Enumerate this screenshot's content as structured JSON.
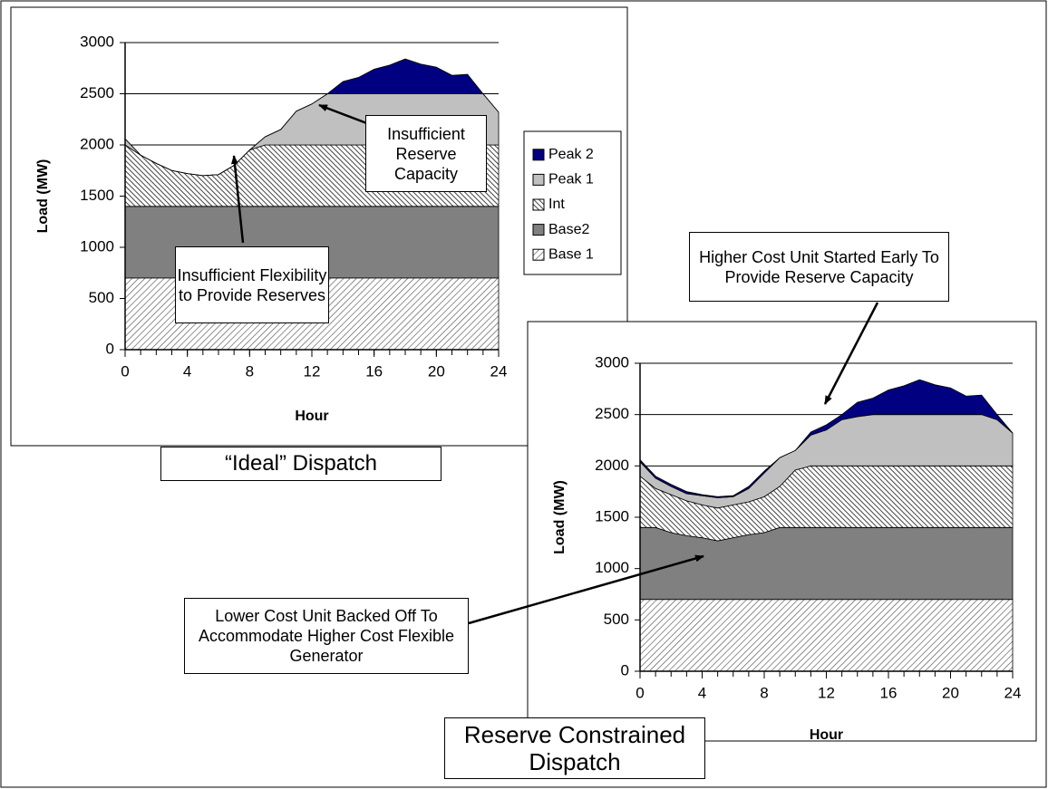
{
  "chart_data": [
    {
      "type": "stacked-area",
      "caption": "“Ideal” Dispatch",
      "xlabel": "Hour",
      "ylabel": "Load (MW)",
      "x": [
        0,
        1,
        2,
        3,
        4,
        5,
        6,
        7,
        8,
        9,
        10,
        11,
        12,
        13,
        14,
        15,
        16,
        17,
        18,
        19,
        20,
        21,
        22,
        23,
        24
      ],
      "xlim": [
        0,
        24
      ],
      "xticks": [
        0,
        4,
        8,
        12,
        16,
        20,
        24
      ],
      "ylim": [
        0,
        3000
      ],
      "yticks": [
        0,
        500,
        1000,
        1500,
        2000,
        2500,
        3000
      ],
      "grid": true,
      "legend": "right",
      "series": [
        {
          "name": "Base 1",
          "color": "#000000",
          "pattern": "diagonal",
          "values": [
            700,
            700,
            700,
            700,
            700,
            700,
            700,
            700,
            700,
            700,
            700,
            700,
            700,
            700,
            700,
            700,
            700,
            700,
            700,
            700,
            700,
            700,
            700,
            700,
            700
          ]
        },
        {
          "name": "Base2",
          "color": "#808080",
          "values": [
            700,
            700,
            700,
            700,
            700,
            700,
            700,
            700,
            700,
            700,
            700,
            700,
            700,
            700,
            700,
            700,
            700,
            700,
            700,
            700,
            700,
            700,
            700,
            700,
            700
          ]
        },
        {
          "name": "Int",
          "color": "#404040",
          "pattern": "crosshatch",
          "values": [
            600,
            500,
            420,
            350,
            320,
            300,
            310,
            400,
            550,
            600,
            600,
            600,
            600,
            600,
            600,
            600,
            600,
            600,
            600,
            600,
            600,
            600,
            600,
            600,
            600
          ]
        },
        {
          "name": "Peak 1",
          "color": "#c0c0c0",
          "values": [
            60,
            0,
            0,
            0,
            0,
            0,
            0,
            0,
            0,
            80,
            150,
            330,
            400,
            500,
            500,
            500,
            500,
            500,
            500,
            500,
            500,
            500,
            500,
            500,
            320
          ]
        },
        {
          "name": "Peak 2",
          "color": "#000080",
          "values": [
            0,
            0,
            0,
            0,
            0,
            0,
            0,
            0,
            0,
            0,
            0,
            0,
            0,
            0,
            120,
            160,
            240,
            280,
            340,
            290,
            260,
            180,
            190,
            0,
            0
          ]
        }
      ]
    },
    {
      "type": "stacked-area",
      "caption": "Reserve Constrained Dispatch",
      "xlabel": "Hour",
      "ylabel": "Load (MW)",
      "x": [
        0,
        1,
        2,
        3,
        4,
        5,
        6,
        7,
        8,
        9,
        10,
        11,
        12,
        13,
        14,
        15,
        16,
        17,
        18,
        19,
        20,
        21,
        22,
        23,
        24
      ],
      "xlim": [
        0,
        24
      ],
      "xticks": [
        0,
        4,
        8,
        12,
        16,
        20,
        24
      ],
      "ylim": [
        0,
        3000
      ],
      "yticks": [
        0,
        500,
        1000,
        1500,
        2000,
        2500,
        3000
      ],
      "grid": true,
      "series": [
        {
          "name": "Base 1",
          "color": "#000000",
          "pattern": "diagonal",
          "values": [
            700,
            700,
            700,
            700,
            700,
            700,
            700,
            700,
            700,
            700,
            700,
            700,
            700,
            700,
            700,
            700,
            700,
            700,
            700,
            700,
            700,
            700,
            700,
            700,
            700
          ]
        },
        {
          "name": "Base2",
          "color": "#808080",
          "values": [
            700,
            700,
            650,
            620,
            600,
            570,
            600,
            630,
            650,
            700,
            700,
            700,
            700,
            700,
            700,
            700,
            700,
            700,
            700,
            700,
            700,
            700,
            700,
            700,
            700
          ]
        },
        {
          "name": "Int",
          "color": "#404040",
          "pattern": "crosshatch",
          "values": [
            500,
            380,
            370,
            340,
            320,
            320,
            320,
            320,
            350,
            400,
            560,
            600,
            600,
            600,
            600,
            600,
            600,
            600,
            600,
            600,
            600,
            600,
            600,
            600,
            600
          ]
        },
        {
          "name": "Peak 1",
          "color": "#c0c0c0",
          "values": [
            140,
            100,
            80,
            70,
            90,
            100,
            80,
            130,
            230,
            280,
            190,
            300,
            350,
            450,
            480,
            500,
            500,
            500,
            500,
            500,
            500,
            500,
            500,
            450,
            320
          ]
        },
        {
          "name": "Peak 2",
          "color": "#000080",
          "values": [
            20,
            20,
            20,
            20,
            10,
            10,
            10,
            20,
            20,
            0,
            0,
            30,
            50,
            50,
            140,
            160,
            240,
            280,
            340,
            290,
            260,
            180,
            190,
            50,
            0
          ]
        }
      ]
    }
  ],
  "annotations": [
    {
      "text": "Insufficient Reserve Capacity"
    },
    {
      "text": "Insufficient Flexibility to Provide Reserves"
    },
    {
      "text": "Higher Cost Unit Started Early To Provide Reserve Capacity"
    },
    {
      "text": "Lower Cost Unit Backed Off To Accommodate Higher Cost Flexible Generator"
    }
  ]
}
